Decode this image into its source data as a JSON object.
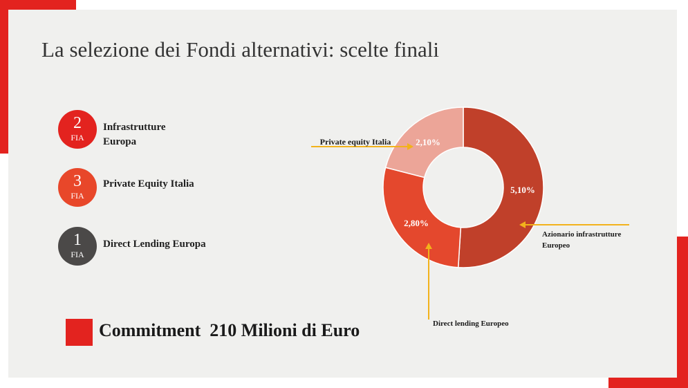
{
  "title": "La selezione dei Fondi alternativi: scelte finali",
  "funds": [
    {
      "count": "2",
      "unit": "FIA",
      "label": "Infrastrutture Europa",
      "color": "#e3231f"
    },
    {
      "count": "3",
      "unit": "FIA",
      "label": "Private Equity Italia",
      "color": "#e8472a"
    },
    {
      "count": "1",
      "unit": "FIA",
      "label": "Direct Lending Europa",
      "color": "#4b4948"
    }
  ],
  "commitment": "Commitment  210 Milioni di Euro",
  "chart_data": {
    "type": "pie",
    "donut": true,
    "slices": [
      {
        "name": "Azionario infrastrutture Europeo",
        "value": 5.1,
        "label": "5,10%",
        "color": "#c0402a"
      },
      {
        "name": "Direct lending Europeo",
        "value": 2.8,
        "label": "2,80%",
        "color": "#e4482d"
      },
      {
        "name": "Private equity Italia",
        "value": 2.1,
        "label": "2,10%",
        "color": "#eca598"
      }
    ],
    "start_angle_deg": 0,
    "direction": "clockwise"
  },
  "colors": {
    "accent_red": "#e3231f",
    "leader_line": "#f2b21b",
    "panel": "#f0f0ee"
  }
}
